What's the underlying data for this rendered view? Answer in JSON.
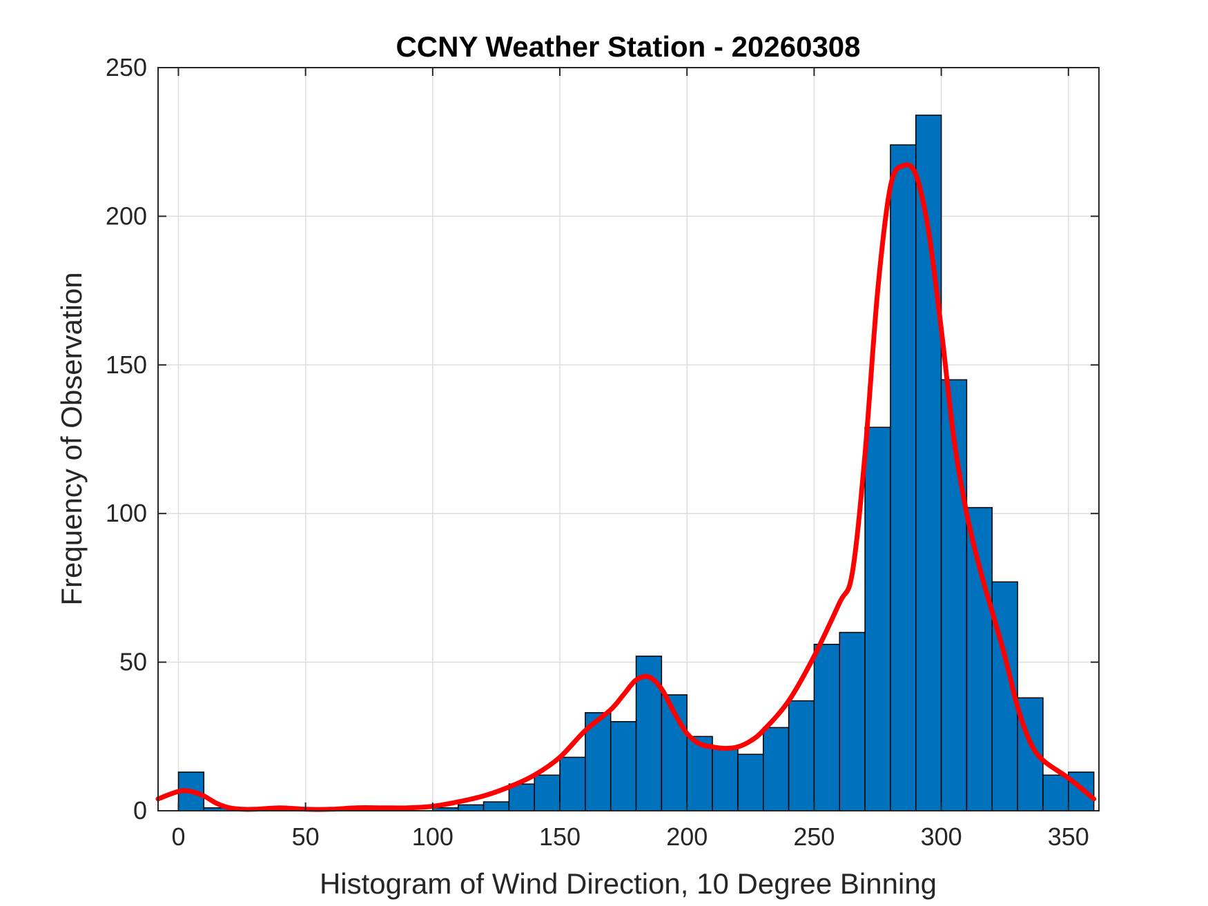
{
  "chart_data": {
    "type": "bar",
    "title": "CCNY Weather Station - 20260308",
    "xlabel": "Histogram of Wind Direction, 10 Degree Binning",
    "ylabel": "Frequency of Observation",
    "xlim": [
      -8,
      362
    ],
    "ylim": [
      0,
      250
    ],
    "xticks": [
      0,
      50,
      100,
      150,
      200,
      250,
      300,
      350
    ],
    "yticks": [
      0,
      50,
      100,
      150,
      200,
      250
    ],
    "grid": true,
    "bin_width": 10,
    "bar_color": "#0072BD",
    "curve_color": "#FF0000",
    "bins": [
      {
        "x0": 0,
        "x1": 10,
        "count": 13
      },
      {
        "x0": 10,
        "x1": 20,
        "count": 1
      },
      {
        "x0": 20,
        "x1": 30,
        "count": 0
      },
      {
        "x0": 30,
        "x1": 40,
        "count": 0
      },
      {
        "x0": 40,
        "x1": 50,
        "count": 0
      },
      {
        "x0": 50,
        "x1": 60,
        "count": 0
      },
      {
        "x0": 60,
        "x1": 70,
        "count": 0
      },
      {
        "x0": 70,
        "x1": 80,
        "count": 1
      },
      {
        "x0": 80,
        "x1": 90,
        "count": 1
      },
      {
        "x0": 90,
        "x1": 100,
        "count": 0
      },
      {
        "x0": 100,
        "x1": 110,
        "count": 1
      },
      {
        "x0": 110,
        "x1": 120,
        "count": 2
      },
      {
        "x0": 120,
        "x1": 130,
        "count": 3
      },
      {
        "x0": 130,
        "x1": 140,
        "count": 9
      },
      {
        "x0": 140,
        "x1": 150,
        "count": 12
      },
      {
        "x0": 150,
        "x1": 160,
        "count": 18
      },
      {
        "x0": 160,
        "x1": 170,
        "count": 33
      },
      {
        "x0": 170,
        "x1": 180,
        "count": 30
      },
      {
        "x0": 180,
        "x1": 190,
        "count": 52
      },
      {
        "x0": 190,
        "x1": 200,
        "count": 39
      },
      {
        "x0": 200,
        "x1": 210,
        "count": 25
      },
      {
        "x0": 210,
        "x1": 220,
        "count": 21
      },
      {
        "x0": 220,
        "x1": 230,
        "count": 19
      },
      {
        "x0": 230,
        "x1": 240,
        "count": 28
      },
      {
        "x0": 240,
        "x1": 250,
        "count": 37
      },
      {
        "x0": 250,
        "x1": 260,
        "count": 56
      },
      {
        "x0": 260,
        "x1": 270,
        "count": 60
      },
      {
        "x0": 270,
        "x1": 280,
        "count": 129
      },
      {
        "x0": 280,
        "x1": 290,
        "count": 224
      },
      {
        "x0": 290,
        "x1": 300,
        "count": 234
      },
      {
        "x0": 300,
        "x1": 310,
        "count": 145
      },
      {
        "x0": 310,
        "x1": 320,
        "count": 102
      },
      {
        "x0": 320,
        "x1": 330,
        "count": 77
      },
      {
        "x0": 330,
        "x1": 340,
        "count": 38
      },
      {
        "x0": 340,
        "x1": 350,
        "count": 12
      },
      {
        "x0": 350,
        "x1": 360,
        "count": 13
      }
    ],
    "curve": {
      "x": [
        -8,
        0,
        5,
        10,
        15,
        20,
        25,
        30,
        40,
        50,
        60,
        70,
        80,
        90,
        100,
        110,
        120,
        130,
        140,
        150,
        160,
        170,
        175,
        180,
        185,
        190,
        195,
        200,
        205,
        210,
        215,
        220,
        225,
        230,
        240,
        250,
        260,
        265,
        270,
        275,
        280,
        285,
        290,
        295,
        300,
        305,
        310,
        315,
        320,
        325,
        330,
        335,
        340,
        350,
        360
      ],
      "y": [
        4,
        6.5,
        6.5,
        5,
        2.5,
        1,
        0.5,
        0.5,
        1,
        0.5,
        0.5,
        1,
        1,
        1,
        1.5,
        3,
        5,
        8,
        12,
        18,
        27,
        34,
        39,
        44,
        45,
        41,
        33,
        26,
        22.5,
        21.5,
        21,
        21.5,
        23.5,
        27,
        37,
        52,
        70,
        80,
        120,
        175,
        210,
        217,
        214,
        195,
        162,
        125,
        100,
        82,
        67,
        52,
        35,
        23,
        17,
        11,
        4
      ]
    }
  }
}
